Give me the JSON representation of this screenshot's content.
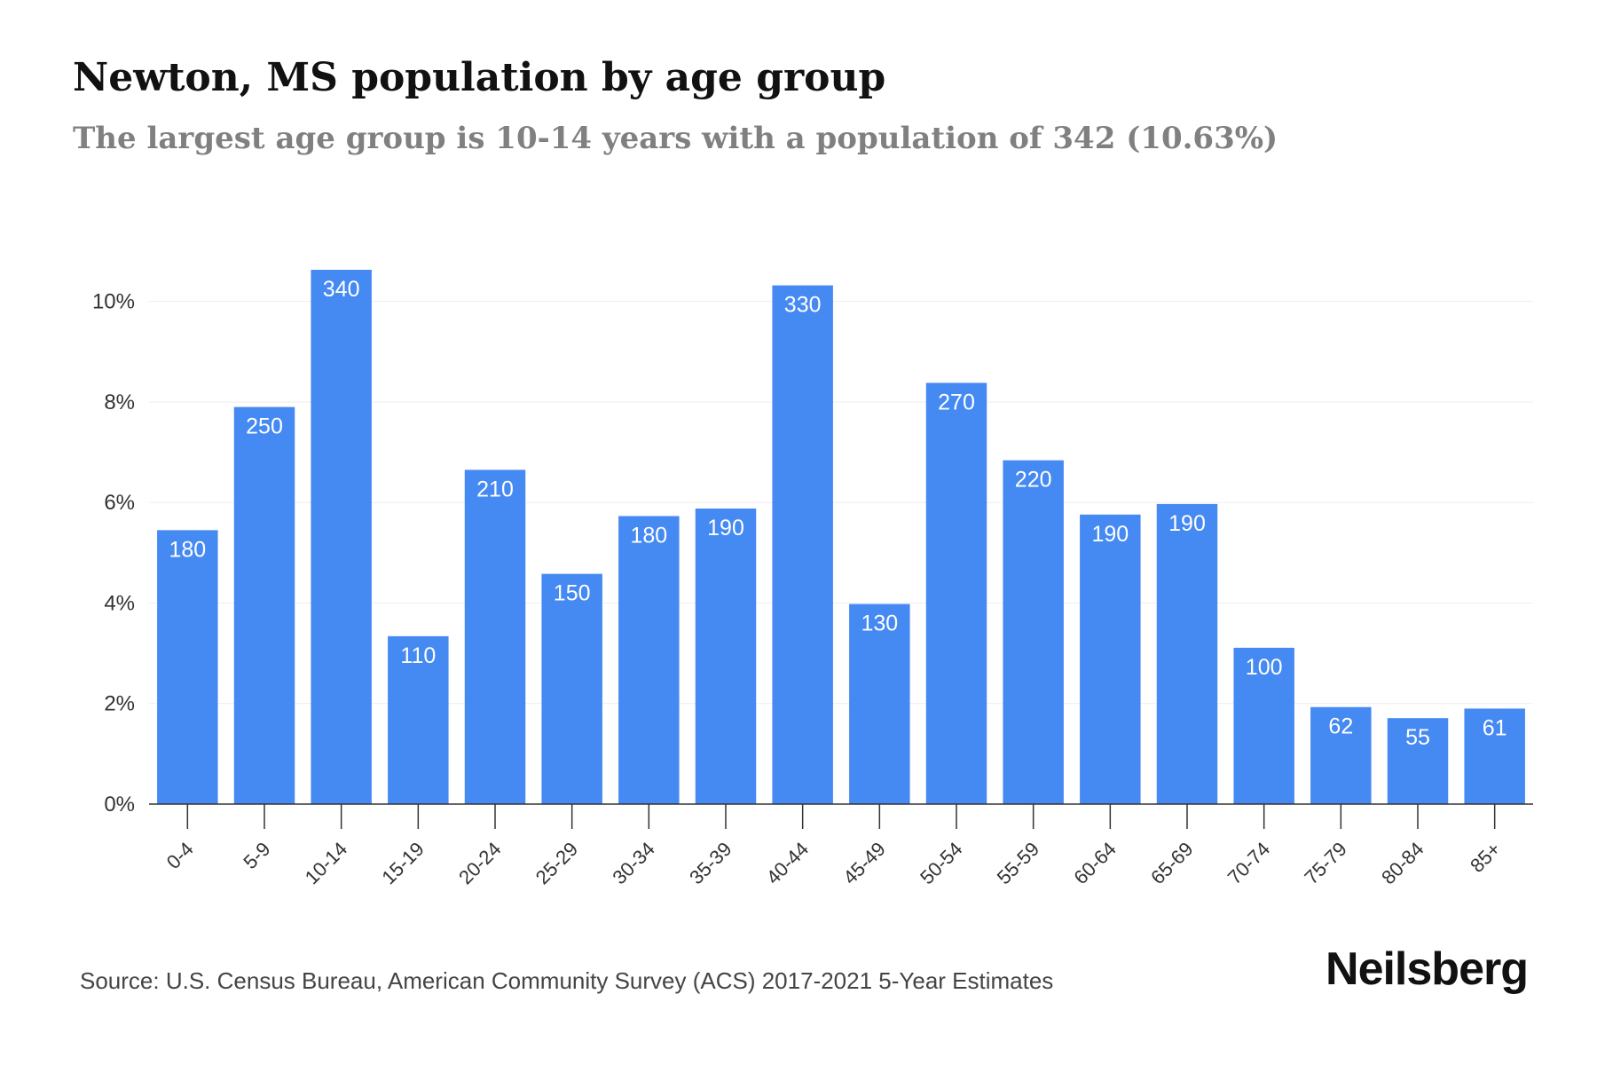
{
  "header": {
    "title": "Newton, MS population by age group",
    "subtitle": "The largest age group is 10-14 years with a population of 342 (10.63%)"
  },
  "footer": {
    "source": "Source: U.S. Census Bureau, American Community Survey (ACS) 2017-2021 5-Year Estimates",
    "brand": "Neilsberg"
  },
  "colors": {
    "bar": "#4589f2",
    "bar_label": "#ffffff",
    "grid": "#eeeeee",
    "axis": "#333333",
    "tick_text": "#333333"
  },
  "chart_data": {
    "type": "bar",
    "categories": [
      "0-4",
      "5-9",
      "10-14",
      "15-19",
      "20-24",
      "25-29",
      "30-34",
      "35-39",
      "40-44",
      "45-49",
      "50-54",
      "55-59",
      "60-64",
      "65-69",
      "70-74",
      "75-79",
      "80-84",
      "85+"
    ],
    "values": [
      5.45,
      7.9,
      10.63,
      3.34,
      6.65,
      4.58,
      5.73,
      5.88,
      10.32,
      3.98,
      8.38,
      6.84,
      5.76,
      5.97,
      3.11,
      1.93,
      1.71,
      1.9
    ],
    "data_labels": [
      "180",
      "250",
      "340",
      "110",
      "210",
      "150",
      "180",
      "190",
      "330",
      "130",
      "270",
      "220",
      "190",
      "190",
      "100",
      "62",
      "55",
      "61"
    ],
    "ylim": [
      0,
      10.63
    ],
    "yticks": [
      0,
      2,
      4,
      6,
      8,
      10
    ],
    "ytick_labels": [
      "0%",
      "2%",
      "4%",
      "6%",
      "8%",
      "10%"
    ],
    "grid": true,
    "legend": "none"
  }
}
